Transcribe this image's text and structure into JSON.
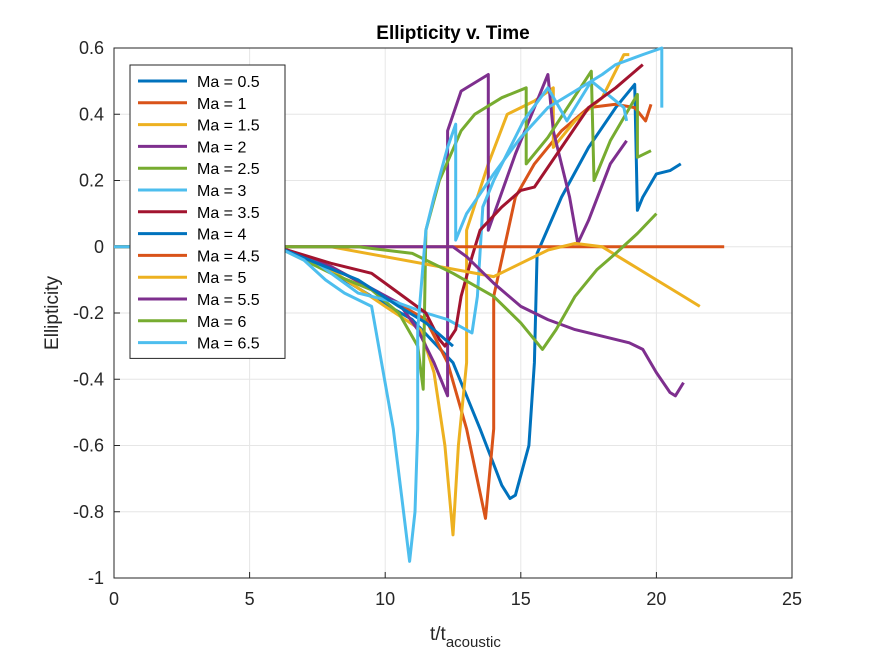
{
  "chart_data": {
    "type": "line",
    "title": "Ellipticity v. Time",
    "xlabel": "t/t",
    "xlabel_sub": "acoustic",
    "ylabel": "Ellipticity",
    "xlim": [
      0,
      25
    ],
    "ylim": [
      -1,
      0.6
    ],
    "xticks": [
      "0",
      "5",
      "10",
      "15",
      "20",
      "25"
    ],
    "yticks": [
      "-1",
      "-0.8",
      "-0.6",
      "-0.4",
      "-0.2",
      "0",
      "0.2",
      "0.4",
      "0.6"
    ],
    "grid": true,
    "legend_position": "top-left",
    "series": [
      {
        "name": "Ma = 0.5",
        "color": "#0072BD",
        "points": [
          [
            0,
            0
          ],
          [
            6,
            0
          ],
          [
            7.5,
            -0.05
          ],
          [
            9.5,
            -0.15
          ],
          [
            11,
            -0.22
          ],
          [
            12.5,
            -0.35
          ],
          [
            13.5,
            -0.55
          ],
          [
            14.3,
            -0.72
          ],
          [
            14.6,
            -0.76
          ],
          [
            14.8,
            -0.75
          ],
          [
            15.3,
            -0.6
          ],
          [
            15.5,
            -0.35
          ],
          [
            15.6,
            -0.02
          ],
          [
            16.5,
            0.15
          ],
          [
            17.5,
            0.3
          ],
          [
            18.5,
            0.42
          ],
          [
            19.2,
            0.49
          ],
          [
            19.3,
            0.11
          ],
          [
            19.5,
            0.15
          ],
          [
            20,
            0.22
          ],
          [
            20.5,
            0.23
          ],
          [
            20.9,
            0.25
          ]
        ]
      },
      {
        "name": "Ma = 1",
        "color": "#D95319",
        "points": [
          [
            0,
            0
          ],
          [
            6,
            0
          ],
          [
            8,
            -0.06
          ],
          [
            10,
            -0.15
          ],
          [
            11.5,
            -0.22
          ],
          [
            12.3,
            -0.35
          ],
          [
            13,
            -0.55
          ],
          [
            13.7,
            -0.82
          ],
          [
            14,
            -0.55
          ],
          [
            14,
            -0.15
          ],
          [
            14.8,
            0.15
          ],
          [
            15.5,
            0.25
          ],
          [
            16.5,
            0.35
          ],
          [
            17.5,
            0.42
          ],
          [
            18.5,
            0.43
          ],
          [
            19.2,
            0.42
          ],
          [
            19.6,
            0.38
          ],
          [
            19.8,
            0.43
          ]
        ]
      },
      {
        "name": "Ma = 1.5",
        "color": "#EDB120",
        "points": [
          [
            0,
            0
          ],
          [
            6,
            0
          ],
          [
            8,
            -0.07
          ],
          [
            10,
            -0.18
          ],
          [
            11.3,
            -0.25
          ],
          [
            11.8,
            -0.38
          ],
          [
            12.2,
            -0.6
          ],
          [
            12.5,
            -0.87
          ],
          [
            12.7,
            -0.6
          ],
          [
            13,
            -0.35
          ],
          [
            13,
            0.05
          ],
          [
            13.8,
            0.25
          ],
          [
            14.5,
            0.4
          ],
          [
            15.5,
            0.44
          ],
          [
            16.2,
            0.48
          ],
          [
            16.2,
            0.3
          ],
          [
            17,
            0.38
          ],
          [
            18,
            0.45
          ],
          [
            18.8,
            0.58
          ],
          [
            19,
            0.58
          ]
        ]
      },
      {
        "name": "Ma = 2",
        "color": "#7E2F8E",
        "points": [
          [
            0,
            0
          ],
          [
            6,
            0
          ],
          [
            8,
            -0.06
          ],
          [
            10.5,
            -0.17
          ],
          [
            11.2,
            -0.25
          ],
          [
            11.8,
            -0.35
          ],
          [
            12.3,
            -0.45
          ],
          [
            12.3,
            0.35
          ],
          [
            12.8,
            0.47
          ],
          [
            13.8,
            0.52
          ],
          [
            13.8,
            0.05
          ],
          [
            14.8,
            0.28
          ],
          [
            15.5,
            0.42
          ],
          [
            16,
            0.52
          ],
          [
            16.2,
            0.35
          ],
          [
            16.8,
            0.15
          ],
          [
            17.1,
            0.01
          ],
          [
            17.5,
            0.08
          ],
          [
            18.3,
            0.25
          ],
          [
            18.9,
            0.32
          ]
        ]
      },
      {
        "name": "Ma = 2.5",
        "color": "#77AC30",
        "points": [
          [
            0,
            0
          ],
          [
            6,
            0
          ],
          [
            8,
            -0.08
          ],
          [
            9.5,
            -0.13
          ],
          [
            10.5,
            -0.2
          ],
          [
            11.2,
            -0.3
          ],
          [
            11.4,
            -0.43
          ],
          [
            11.5,
            0.05
          ],
          [
            12,
            0.2
          ],
          [
            12.8,
            0.35
          ],
          [
            13.3,
            0.4
          ],
          [
            14.3,
            0.45
          ],
          [
            15.2,
            0.48
          ],
          [
            15.2,
            0.25
          ],
          [
            16,
            0.33
          ],
          [
            16.8,
            0.43
          ],
          [
            17.6,
            0.53
          ],
          [
            17.7,
            0.2
          ],
          [
            18.3,
            0.32
          ],
          [
            19.3,
            0.46
          ],
          [
            19.3,
            0.27
          ],
          [
            19.8,
            0.29
          ]
        ]
      },
      {
        "name": "Ma = 3",
        "color": "#4DBEEE",
        "points": [
          [
            0,
            0
          ],
          [
            6,
            0
          ],
          [
            7.5,
            -0.05
          ],
          [
            9,
            -0.14
          ],
          [
            10.5,
            -0.17
          ],
          [
            11.5,
            -0.2
          ],
          [
            12.3,
            -0.22
          ],
          [
            13.2,
            -0.26
          ],
          [
            13.4,
            -0.15
          ],
          [
            13.6,
            0.12
          ],
          [
            14,
            0.2
          ],
          [
            15.1,
            0.38
          ],
          [
            16,
            0.48
          ],
          [
            16.7,
            0.38
          ],
          [
            17.6,
            0.5
          ],
          [
            18.8,
            0.42
          ],
          [
            18.9,
            0.38
          ]
        ]
      },
      {
        "name": "Ma = 3.5",
        "color": "#A2142F",
        "points": [
          [
            0,
            0
          ],
          [
            6,
            0
          ],
          [
            8,
            -0.05
          ],
          [
            9.5,
            -0.08
          ],
          [
            10.5,
            -0.14
          ],
          [
            11.5,
            -0.2
          ],
          [
            12,
            -0.28
          ],
          [
            12.2,
            -0.3
          ],
          [
            12.6,
            -0.25
          ],
          [
            12.8,
            -0.15
          ],
          [
            13.2,
            -0.03
          ],
          [
            13.5,
            0.05
          ],
          [
            14.3,
            0.12
          ],
          [
            15,
            0.17
          ],
          [
            15.5,
            0.18
          ],
          [
            16.5,
            0.3
          ],
          [
            17.5,
            0.42
          ],
          [
            18.5,
            0.48
          ],
          [
            19.5,
            0.55
          ]
        ]
      },
      {
        "name": "Ma = 4",
        "color": "#0072BD",
        "points": [
          [
            0,
            0
          ],
          [
            6,
            0
          ],
          [
            7.5,
            -0.05
          ],
          [
            9,
            -0.1
          ],
          [
            10.5,
            -0.18
          ],
          [
            11.5,
            -0.23
          ],
          [
            12.5,
            -0.3
          ]
        ]
      },
      {
        "name": "Ma = 4.5",
        "color": "#D95319",
        "points": [
          [
            0,
            0
          ],
          [
            22.5,
            0
          ]
        ]
      },
      {
        "name": "Ma = 5",
        "color": "#EDB120",
        "points": [
          [
            0,
            0
          ],
          [
            6,
            0
          ],
          [
            8,
            0
          ],
          [
            10,
            -0.03
          ],
          [
            12,
            -0.06
          ],
          [
            14,
            -0.09
          ],
          [
            16,
            -0.01
          ],
          [
            17,
            0.01
          ],
          [
            18,
            0
          ],
          [
            19,
            -0.05
          ],
          [
            20,
            -0.1
          ],
          [
            21,
            -0.15
          ],
          [
            21.6,
            -0.18
          ]
        ]
      },
      {
        "name": "Ma = 5.5",
        "color": "#7E2F8E",
        "points": [
          [
            0,
            0
          ],
          [
            6,
            0
          ],
          [
            9,
            0
          ],
          [
            11,
            0
          ],
          [
            12.5,
            0
          ],
          [
            13,
            -0.03
          ],
          [
            14,
            -0.11
          ],
          [
            15,
            -0.18
          ],
          [
            16,
            -0.22
          ],
          [
            17,
            -0.25
          ],
          [
            18,
            -0.27
          ],
          [
            19,
            -0.29
          ],
          [
            19.5,
            -0.31
          ],
          [
            20,
            -0.38
          ],
          [
            20.5,
            -0.44
          ],
          [
            20.7,
            -0.45
          ],
          [
            21,
            -0.41
          ]
        ]
      },
      {
        "name": "Ma = 6",
        "color": "#77AC30",
        "points": [
          [
            0,
            0
          ],
          [
            6,
            0
          ],
          [
            9,
            0
          ],
          [
            11,
            -0.02
          ],
          [
            12.5,
            -0.08
          ],
          [
            14,
            -0.15
          ],
          [
            15,
            -0.23
          ],
          [
            15.8,
            -0.31
          ],
          [
            16.3,
            -0.25
          ],
          [
            17,
            -0.15
          ],
          [
            17.8,
            -0.07
          ],
          [
            18.5,
            -0.02
          ],
          [
            19.3,
            0.04
          ],
          [
            20,
            0.1
          ]
        ]
      },
      {
        "name": "Ma = 6.5",
        "color": "#4DBEEE",
        "points": [
          [
            0,
            0
          ],
          [
            6,
            0
          ],
          [
            7,
            -0.04
          ],
          [
            7.8,
            -0.1
          ],
          [
            8.5,
            -0.14
          ],
          [
            9.5,
            -0.18
          ],
          [
            10.3,
            -0.55
          ],
          [
            10.6,
            -0.75
          ],
          [
            10.9,
            -0.95
          ],
          [
            11.1,
            -0.8
          ],
          [
            11.2,
            -0.55
          ],
          [
            11.2,
            -0.25
          ],
          [
            11.5,
            0.05
          ],
          [
            11.8,
            0.15
          ],
          [
            12.3,
            0.3
          ],
          [
            12.6,
            0.37
          ],
          [
            12.6,
            0.02
          ],
          [
            13,
            0.1
          ],
          [
            14,
            0.22
          ],
          [
            15,
            0.33
          ],
          [
            16,
            0.42
          ],
          [
            17,
            0.47
          ],
          [
            18,
            0.52
          ],
          [
            18.5,
            0.55
          ],
          [
            19.5,
            0.58
          ],
          [
            20.2,
            0.6
          ],
          [
            20.2,
            0.42
          ]
        ]
      }
    ]
  }
}
